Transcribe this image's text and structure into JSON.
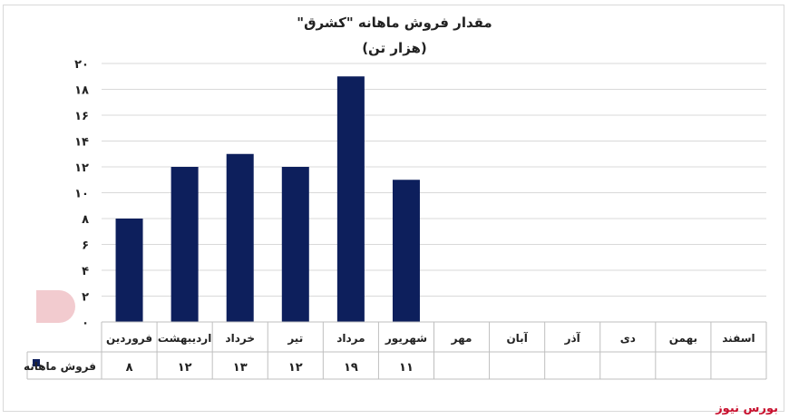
{
  "chart_data": {
    "type": "bar",
    "title": "مقدار فروش ماهانه \"کشرق\"",
    "subtitle": "(هزار تن)",
    "categories": [
      "فروردین",
      "اردیبهشت",
      "خرداد",
      "تیر",
      "مرداد",
      "شهریور",
      "مهر",
      "آبان",
      "آذر",
      "دی",
      "بهمن",
      "اسفند"
    ],
    "series": [
      {
        "name": "فروش ماهانه",
        "values": [
          8,
          12,
          13,
          12,
          19,
          11,
          null,
          null,
          null,
          null,
          null,
          null
        ]
      }
    ],
    "table_values": [
      "۸",
      "۱۲",
      "۱۳",
      "۱۲",
      "۱۹",
      "۱۱",
      "",
      "",
      "",
      "",
      "",
      ""
    ],
    "ylim": [
      0,
      20
    ],
    "yticks": [
      0,
      2,
      4,
      6,
      8,
      10,
      12,
      14,
      16,
      18,
      20
    ],
    "ytick_labels": [
      "۰",
      "۲",
      "۴",
      "۶",
      "۸",
      "۱۰",
      "۱۲",
      "۱۴",
      "۱۶",
      "۱۸",
      "۲۰"
    ],
    "grid": true,
    "legend": "data-table",
    "bar_color": "#0d1f5c"
  },
  "watermark": "بورس نیوز"
}
